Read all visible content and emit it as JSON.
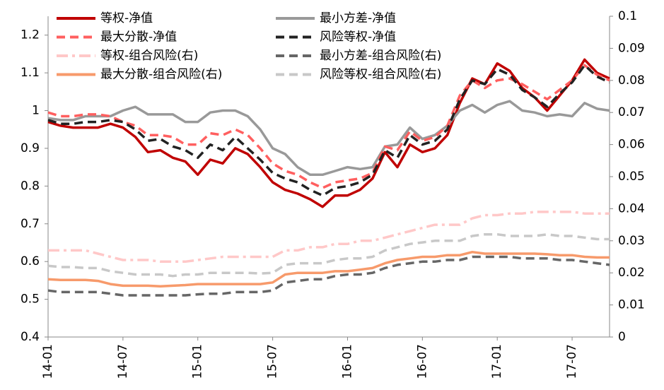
{
  "chart_data": {
    "type": "line",
    "categories": [
      "14-01",
      null,
      null,
      null,
      null,
      null,
      "14-07",
      null,
      null,
      null,
      null,
      null,
      "15-01",
      null,
      null,
      null,
      null,
      null,
      "15-07",
      null,
      null,
      null,
      null,
      null,
      "16-01",
      null,
      null,
      null,
      null,
      null,
      "16-07",
      null,
      null,
      null,
      null,
      null,
      "17-01",
      null,
      null,
      null,
      null,
      null,
      "17-07",
      null,
      null,
      null
    ],
    "ylim": [
      0.4,
      1.25
    ],
    "yticks": [
      0.4,
      0.5,
      0.6,
      0.7,
      0.8,
      0.9,
      1,
      1.1,
      1.2
    ],
    "y2lim": [
      0,
      0.1
    ],
    "y2ticks": [
      0,
      0.01,
      0.02,
      0.03,
      0.04,
      0.05,
      0.06,
      0.07,
      0.08,
      0.09,
      0.1
    ],
    "grid": false,
    "legend": "top",
    "series": [
      {
        "name": "等权-净值",
        "color": "#c00000",
        "dash": "solid",
        "values": [
          0.97,
          0.96,
          0.955,
          0.955,
          0.955,
          0.965,
          0.955,
          0.93,
          0.89,
          0.895,
          0.875,
          0.865,
          0.83,
          0.87,
          0.86,
          0.9,
          0.885,
          0.85,
          0.81,
          0.79,
          0.78,
          0.765,
          0.745,
          0.775,
          0.775,
          0.79,
          0.82,
          0.89,
          0.85,
          0.91,
          0.89,
          0.9,
          0.935,
          1.02,
          1.085,
          1.07,
          1.125,
          1.105,
          1.06,
          1.035,
          1.0,
          1.04,
          1.08,
          1.135,
          1.1,
          1.085
        ]
      },
      {
        "name": "最小方差-净值",
        "color": "#999999",
        "dash": "solid",
        "values": [
          0.98,
          0.975,
          0.975,
          0.985,
          0.985,
          0.985,
          1.0,
          1.01,
          0.99,
          0.99,
          0.99,
          0.97,
          0.97,
          0.995,
          1.0,
          1.0,
          0.985,
          0.95,
          0.9,
          0.885,
          0.85,
          0.83,
          0.83,
          0.84,
          0.85,
          0.845,
          0.85,
          0.905,
          0.91,
          0.955,
          0.925,
          0.935,
          0.96,
          1.0,
          1.015,
          0.995,
          1.015,
          1.025,
          1.0,
          0.995,
          0.985,
          0.99,
          0.985,
          1.02,
          1.005,
          1.0
        ]
      },
      {
        "name": "最大分散-净值",
        "color": "#ff5f5f",
        "dash": "dashed",
        "values": [
          0.995,
          0.985,
          0.985,
          0.99,
          0.99,
          0.985,
          0.97,
          0.96,
          0.935,
          0.935,
          0.93,
          0.91,
          0.91,
          0.94,
          0.935,
          0.95,
          0.935,
          0.9,
          0.86,
          0.84,
          0.83,
          0.81,
          0.795,
          0.81,
          0.815,
          0.82,
          0.835,
          0.905,
          0.895,
          0.945,
          0.92,
          0.93,
          0.96,
          1.04,
          1.08,
          1.06,
          1.08,
          1.085,
          1.07,
          1.05,
          1.03,
          1.055,
          1.08,
          1.12,
          1.095,
          1.08
        ]
      },
      {
        "name": "风险等权-净值",
        "color": "#222222",
        "dash": "dashed",
        "values": [
          0.975,
          0.965,
          0.965,
          0.97,
          0.97,
          0.975,
          0.97,
          0.95,
          0.92,
          0.925,
          0.905,
          0.895,
          0.875,
          0.91,
          0.895,
          0.93,
          0.9,
          0.87,
          0.835,
          0.82,
          0.81,
          0.79,
          0.775,
          0.795,
          0.8,
          0.81,
          0.83,
          0.895,
          0.875,
          0.935,
          0.91,
          0.92,
          0.95,
          1.03,
          1.08,
          1.07,
          1.11,
          1.095,
          1.055,
          1.035,
          1.01,
          1.045,
          1.075,
          1.12,
          1.09,
          1.075
        ]
      },
      {
        "name": "等权-组合风险(右)",
        "color": "#ffc8c8",
        "dash": "dashdot",
        "axis": "y2",
        "values": [
          0.027,
          0.027,
          0.027,
          0.027,
          0.026,
          0.025,
          0.024,
          0.024,
          0.024,
          0.0235,
          0.0235,
          0.0235,
          0.024,
          0.0245,
          0.025,
          0.025,
          0.025,
          0.025,
          0.025,
          0.027,
          0.027,
          0.028,
          0.028,
          0.029,
          0.029,
          0.03,
          0.03,
          0.031,
          0.032,
          0.033,
          0.034,
          0.035,
          0.035,
          0.035,
          0.037,
          0.038,
          0.038,
          0.0385,
          0.0385,
          0.039,
          0.039,
          0.039,
          0.039,
          0.0385,
          0.0385,
          0.0385
        ]
      },
      {
        "name": "最小方差-组合风险(右)",
        "color": "#666666",
        "dash": "dashed",
        "axis": "y2",
        "values": [
          0.0145,
          0.014,
          0.014,
          0.014,
          0.014,
          0.0135,
          0.013,
          0.013,
          0.013,
          0.013,
          0.013,
          0.013,
          0.0133,
          0.0135,
          0.0135,
          0.014,
          0.014,
          0.014,
          0.0145,
          0.017,
          0.0175,
          0.018,
          0.018,
          0.019,
          0.0195,
          0.0195,
          0.02,
          0.0215,
          0.0225,
          0.023,
          0.0235,
          0.0235,
          0.024,
          0.024,
          0.025,
          0.025,
          0.025,
          0.025,
          0.0245,
          0.0245,
          0.0245,
          0.024,
          0.024,
          0.0235,
          0.023,
          0.0225
        ]
      },
      {
        "name": "最大分散-组合风险(右)",
        "color": "#f79a6b",
        "dash": "solid",
        "axis": "y2",
        "values": [
          0.018,
          0.0178,
          0.0178,
          0.0178,
          0.0175,
          0.0165,
          0.016,
          0.016,
          0.016,
          0.0158,
          0.016,
          0.0162,
          0.0165,
          0.0165,
          0.0165,
          0.0165,
          0.0165,
          0.0165,
          0.017,
          0.0195,
          0.02,
          0.02,
          0.02,
          0.0205,
          0.0205,
          0.021,
          0.0215,
          0.023,
          0.024,
          0.0245,
          0.025,
          0.025,
          0.0255,
          0.0255,
          0.0265,
          0.026,
          0.026,
          0.026,
          0.026,
          0.026,
          0.0258,
          0.0255,
          0.0255,
          0.025,
          0.0248,
          0.0248
        ]
      },
      {
        "name": "风险等权-组合风险(右)",
        "color": "#c8c8c8",
        "dash": "dashed",
        "axis": "y2",
        "values": [
          0.0222,
          0.0218,
          0.0218,
          0.0215,
          0.0215,
          0.0205,
          0.02,
          0.0195,
          0.0195,
          0.0195,
          0.019,
          0.0195,
          0.0195,
          0.02,
          0.02,
          0.02,
          0.02,
          0.0198,
          0.02,
          0.0225,
          0.023,
          0.023,
          0.023,
          0.024,
          0.0245,
          0.0245,
          0.025,
          0.027,
          0.028,
          0.029,
          0.0295,
          0.03,
          0.03,
          0.03,
          0.0315,
          0.032,
          0.032,
          0.0315,
          0.0315,
          0.0315,
          0.032,
          0.0315,
          0.0315,
          0.031,
          0.0305,
          0.0305
        ]
      }
    ]
  }
}
